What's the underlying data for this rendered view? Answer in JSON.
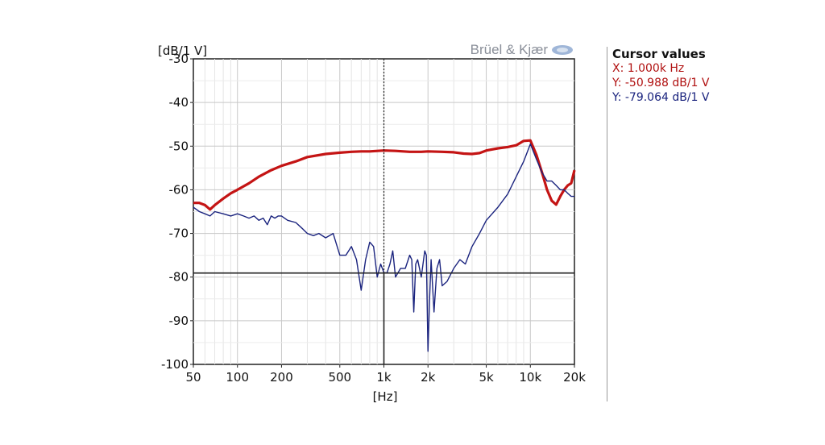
{
  "chart_data": {
    "type": "line",
    "brand": "Brüel & Kjær",
    "y_unit_label": "[dB/1 V]",
    "x_unit_label": "[Hz]",
    "xscale": "log",
    "xlim": [
      50,
      20000
    ],
    "ylim": [
      -100,
      -30
    ],
    "grid": true,
    "x_ticks": [
      {
        "value": 50,
        "label": "50"
      },
      {
        "value": 100,
        "label": "100"
      },
      {
        "value": 200,
        "label": "200"
      },
      {
        "value": 500,
        "label": "500"
      },
      {
        "value": 1000,
        "label": "1k"
      },
      {
        "value": 2000,
        "label": "2k"
      },
      {
        "value": 5000,
        "label": "5k"
      },
      {
        "value": 10000,
        "label": "10k"
      },
      {
        "value": 20000,
        "label": "20k"
      }
    ],
    "y_ticks": [
      {
        "value": -30,
        "label": "-30"
      },
      {
        "value": -40,
        "label": "-40"
      },
      {
        "value": -50,
        "label": "-50"
      },
      {
        "value": -60,
        "label": "-60"
      },
      {
        "value": -70,
        "label": "-70"
      },
      {
        "value": -80,
        "label": "-80"
      },
      {
        "value": -90,
        "label": "-90"
      },
      {
        "value": -100,
        "label": "-100"
      }
    ],
    "cursor": {
      "x": 1000,
      "y": -79.064
    },
    "series": [
      {
        "color": "#c41414",
        "x": [
          50,
          55,
          60,
          65,
          70,
          80,
          90,
          100,
          120,
          140,
          170,
          200,
          250,
          300,
          400,
          500,
          600,
          700,
          800,
          1000,
          1200,
          1500,
          1800,
          2000,
          2500,
          3000,
          3500,
          4000,
          4500,
          5000,
          6000,
          7000,
          8000,
          9000,
          10000,
          11000,
          12000,
          13000,
          14000,
          15000,
          16000,
          17000,
          18000,
          19000,
          20000
        ],
        "y": [
          -63,
          -63,
          -63.5,
          -64.5,
          -63.5,
          -62,
          -60.8,
          -60,
          -58.5,
          -57,
          -55.5,
          -54.5,
          -53.5,
          -52.5,
          -51.8,
          -51.5,
          -51.3,
          -51.2,
          -51.2,
          -51,
          -51.1,
          -51.3,
          -51.3,
          -51.2,
          -51.3,
          -51.4,
          -51.7,
          -51.8,
          -51.6,
          -51,
          -50.5,
          -50.2,
          -49.8,
          -48.8,
          -48.7,
          -52,
          -56,
          -60,
          -62.5,
          -63.4,
          -61.5,
          -60,
          -59,
          -58.5,
          -55.5
        ]
      },
      {
        "color": "#1a237e",
        "x": [
          50,
          55,
          60,
          65,
          70,
          80,
          90,
          100,
          110,
          120,
          130,
          140,
          150,
          160,
          170,
          180,
          190,
          200,
          220,
          250,
          280,
          300,
          330,
          360,
          400,
          450,
          500,
          550,
          600,
          650,
          700,
          750,
          800,
          850,
          900,
          950,
          1000,
          1050,
          1100,
          1150,
          1200,
          1300,
          1400,
          1500,
          1550,
          1600,
          1650,
          1700,
          1800,
          1900,
          1950,
          2000,
          2050,
          2100,
          2200,
          2300,
          2400,
          2500,
          2700,
          3000,
          3300,
          3600,
          4000,
          4500,
          5000,
          6000,
          7000,
          8000,
          9000,
          10000,
          11000,
          12000,
          13000,
          14000,
          15000,
          16000,
          17000,
          18000,
          19000,
          20000
        ],
        "y": [
          -64,
          -65,
          -65.5,
          -66,
          -65,
          -65.5,
          -66,
          -65.5,
          -66,
          -66.5,
          -66,
          -67,
          -66.5,
          -68,
          -66,
          -66.5,
          -66,
          -66,
          -67,
          -67.5,
          -69,
          -70,
          -70.5,
          -70,
          -71,
          -70,
          -75,
          -75,
          -73,
          -76,
          -83,
          -76,
          -72,
          -73,
          -80,
          -77,
          -79,
          -79,
          -77,
          -74,
          -80,
          -78,
          -78,
          -75,
          -76,
          -88,
          -77,
          -76,
          -80,
          -74,
          -75,
          -97,
          -85,
          -76,
          -88,
          -78,
          -76,
          -82,
          -81,
          -78,
          -76,
          -77,
          -73,
          -70,
          -67,
          -64,
          -61,
          -57,
          -53.5,
          -49.5,
          -53,
          -56,
          -58,
          -58,
          -59,
          -60,
          -60,
          -60.8,
          -61.5,
          -61.5
        ]
      }
    ]
  },
  "cursor_panel": {
    "title": "Cursor values",
    "x_line": "X: 1.000k Hz",
    "y1_line": "Y: -50.988 dB/1 V",
    "y2_line": "Y: -79.064 dB/1 V"
  }
}
